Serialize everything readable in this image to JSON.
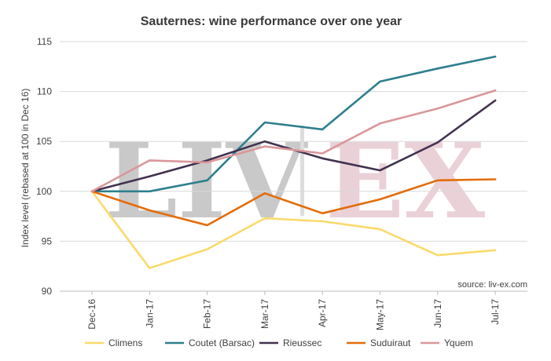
{
  "chart_data": {
    "type": "line",
    "title": "Sauternes: wine performance over one year",
    "ylabel": "Index level (rebased at 100 in Dec 16)",
    "xlabel": "",
    "categories": [
      "Dec-16",
      "Jan-17",
      "Feb-17",
      "Mar-17",
      "Apr-17",
      "May-17",
      "Jun-17",
      "Jul-17"
    ],
    "ylim": [
      90,
      115
    ],
    "yticks": [
      90,
      95,
      100,
      105,
      110,
      115
    ],
    "grid": true,
    "legend_position": "bottom",
    "source": "source: liv-ex.com",
    "watermark": {
      "left": "LIV",
      "right": "EX"
    },
    "series": [
      {
        "name": "Climens",
        "color": "#fada6a",
        "values": [
          100,
          92.3,
          94.2,
          97.3,
          97.0,
          96.2,
          93.6,
          94.1
        ]
      },
      {
        "name": "Coutet (Barsac)",
        "color": "#2e7f8e",
        "values": [
          100,
          100,
          101.1,
          106.9,
          106.2,
          111.0,
          112.3,
          113.5
        ]
      },
      {
        "name": "Rieussec",
        "color": "#41324f",
        "values": [
          100,
          101.5,
          103.1,
          105.0,
          103.3,
          102.1,
          104.9,
          109.1
        ]
      },
      {
        "name": "Suduiraut",
        "color": "#e36c09",
        "values": [
          100,
          98.1,
          96.6,
          99.8,
          97.8,
          99.2,
          101.1,
          101.2
        ]
      },
      {
        "name": "Yquem",
        "color": "#d9979b",
        "values": [
          100,
          103.1,
          102.9,
          104.5,
          103.8,
          106.8,
          108.3,
          110.1
        ]
      }
    ]
  }
}
